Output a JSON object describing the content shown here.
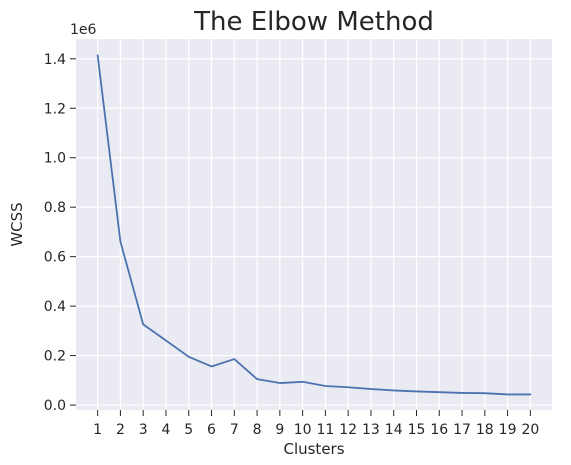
{
  "chart_data": {
    "type": "line",
    "title": "The Elbow Method",
    "xlabel": "Clusters",
    "ylabel": "WCSS",
    "y_offset_label": "1e6",
    "x": [
      1,
      2,
      3,
      4,
      5,
      6,
      7,
      8,
      9,
      10,
      11,
      12,
      13,
      14,
      15,
      16,
      17,
      18,
      19,
      20
    ],
    "x_tick_labels": [
      "1",
      "2",
      "3",
      "4",
      "5",
      "6",
      "7",
      "8",
      "9",
      "10",
      "11",
      "12",
      "13",
      "14",
      "15",
      "16",
      "17",
      "18",
      "19",
      "20"
    ],
    "y_ticks": [
      0.0,
      0.2,
      0.4,
      0.6,
      0.8,
      1.0,
      1.2,
      1.4
    ],
    "y_tick_labels": [
      "0.0",
      "0.2",
      "0.4",
      "0.6",
      "0.8",
      "1.0",
      "1.2",
      "1.4"
    ],
    "series": [
      {
        "values": [
          1414000,
          661000,
          326000,
          261000,
          195000,
          156000,
          186000,
          105000,
          89000,
          94000,
          77000,
          72000,
          65000,
          59000,
          55000,
          52000,
          49000,
          48000,
          43000,
          43000
        ]
      }
    ],
    "xlim": [
      0.05,
      20.95
    ],
    "ylim": [
      -20000,
      1480000
    ],
    "grid": true,
    "legend": false,
    "colors": {
      "background": "#eaeaf2",
      "grid": "#ffffff",
      "line": "#4c72b0",
      "text": "#262626"
    }
  }
}
